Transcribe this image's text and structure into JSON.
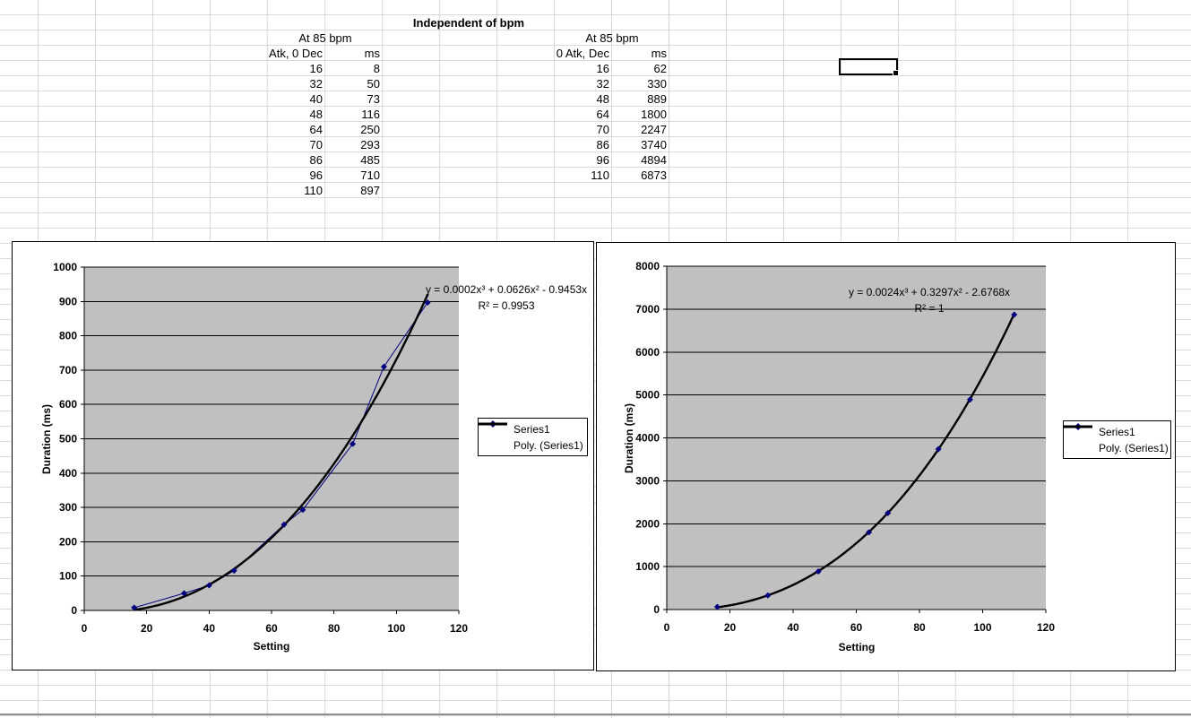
{
  "sheet": {
    "title": "Independent of bpm",
    "tables": [
      {
        "subtitle": "At 85 bpm",
        "col1": "Atk, 0 Dec",
        "col2": "ms",
        "rows": [
          [
            16,
            8
          ],
          [
            32,
            50
          ],
          [
            40,
            73
          ],
          [
            48,
            116
          ],
          [
            64,
            250
          ],
          [
            70,
            293
          ],
          [
            86,
            485
          ],
          [
            96,
            710
          ],
          [
            110,
            897
          ]
        ]
      },
      {
        "subtitle": "At 85 bpm",
        "col1": "0 Atk, Dec",
        "col2": "ms",
        "rows": [
          [
            16,
            62
          ],
          [
            32,
            330
          ],
          [
            48,
            889
          ],
          [
            64,
            1800
          ],
          [
            70,
            2247
          ],
          [
            86,
            3740
          ],
          [
            96,
            4894
          ],
          [
            110,
            6873
          ]
        ]
      }
    ]
  },
  "chart_data": [
    {
      "type": "scatter",
      "x": [
        16,
        32,
        40,
        48,
        64,
        70,
        86,
        96,
        110
      ],
      "series": [
        {
          "name": "Series1",
          "values": [
            8,
            50,
            73,
            116,
            250,
            293,
            485,
            710,
            897
          ],
          "style": "line-marker",
          "color": "#000080"
        }
      ],
      "trendline": {
        "name": "Poly. (Series1)",
        "kind": "polynomial",
        "order": 3,
        "coefficients": [
          0.0002,
          0.0626,
          -0.9453,
          0
        ],
        "equation": "y = 0.0002x³ + 0.0626x² - 0.9453x",
        "r_squared": "R² = 0.9953",
        "color": "#000000"
      },
      "title": "",
      "xlabel": "Setting",
      "ylabel": "Duration (ms)",
      "xlim": [
        0,
        120
      ],
      "xstep": 20,
      "ylim": [
        0,
        1000
      ],
      "ystep": 100,
      "grid": "horizontal",
      "plot_bg": "#c0c0c0",
      "legend": [
        "Series1",
        "Poly. (Series1)"
      ],
      "legend_position": "right"
    },
    {
      "type": "scatter",
      "x": [
        16,
        32,
        48,
        64,
        70,
        86,
        96,
        110
      ],
      "series": [
        {
          "name": "Series1",
          "values": [
            62,
            330,
            889,
            1800,
            2247,
            3740,
            4894,
            6873
          ],
          "style": "marker",
          "color": "#000080"
        }
      ],
      "trendline": {
        "name": "Poly. (Series1)",
        "kind": "polynomial",
        "order": 3,
        "coefficients": [
          0.0024,
          0.3297,
          -2.6768,
          0
        ],
        "equation": "y = 0.0024x³ + 0.3297x² - 2.6768x",
        "r_squared": "R² = 1",
        "color": "#000000"
      },
      "title": "",
      "xlabel": "Setting",
      "ylabel": "Duration (ms)",
      "xlim": [
        0,
        120
      ],
      "xstep": 20,
      "ylim": [
        0,
        8000
      ],
      "ystep": 1000,
      "grid": "horizontal",
      "plot_bg": "#c0c0c0",
      "legend": [
        "Series1",
        "Poly. (Series1)"
      ],
      "legend_position": "right"
    }
  ]
}
